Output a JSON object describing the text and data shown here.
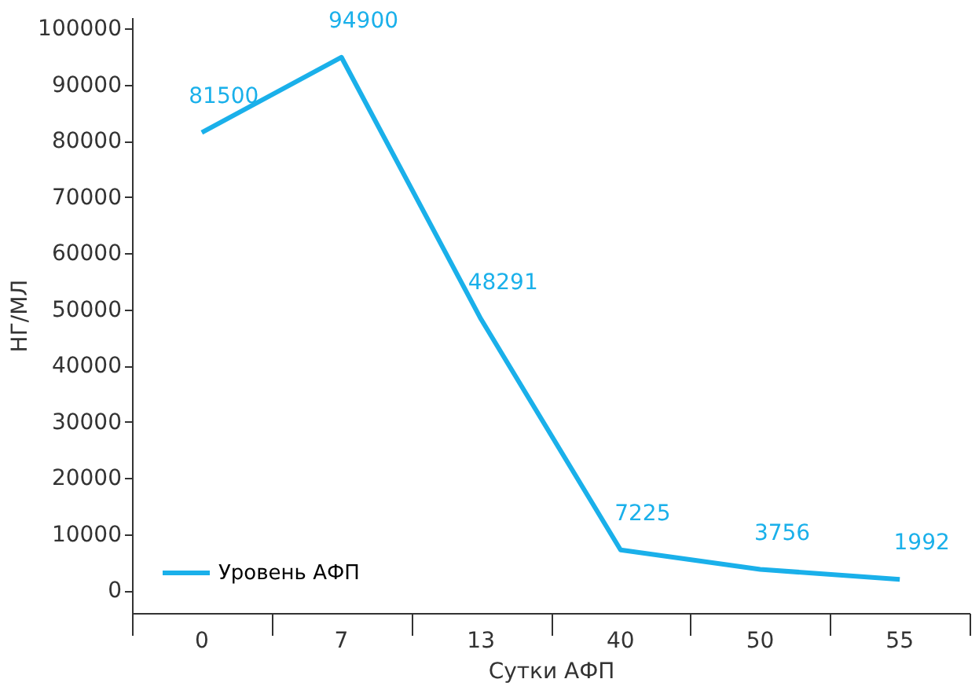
{
  "chart_data": {
    "type": "line",
    "xlabel": "Сутки АФП",
    "ylabel": "НГ/МЛ",
    "categories": [
      "0",
      "7",
      "13",
      "40",
      "50",
      "55"
    ],
    "series": [
      {
        "name": "Уровень АФП",
        "color": "#1ab0ea",
        "values": [
          81500,
          94900,
          48291,
          7225,
          3756,
          1992
        ]
      }
    ],
    "ylim": [
      -4000,
      102000
    ],
    "yticks": [
      0,
      10000,
      20000,
      30000,
      40000,
      50000,
      60000,
      70000,
      80000,
      90000,
      100000
    ],
    "data_labels": true,
    "grid": false,
    "legend": "bottom left",
    "marker": "none",
    "line_style": "solid"
  }
}
